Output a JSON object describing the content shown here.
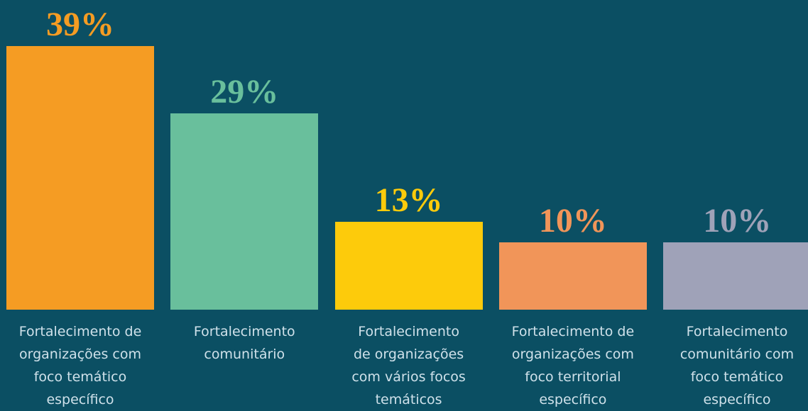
{
  "chart_data": {
    "type": "bar",
    "categories": [
      "Fortalecimento de\norganizações com\nfoco temático\nespecífico",
      "Fortalecimento\ncomunitário",
      "Fortalecimento\nde organizações\ncom vários focos\ntemáticos",
      "Fortalecimento de\norganizações com\nfoco territorial\nespecífico",
      "Fortalecimento\ncomunitário com\nfoco temático\nespecífico"
    ],
    "values": [
      39,
      29,
      13,
      10,
      10
    ],
    "value_labels": [
      "39%",
      "29%",
      "13%",
      "10%",
      "10%"
    ],
    "colors": [
      "#f59c23",
      "#69bf9c",
      "#fdcb0b",
      "#f19559",
      "#9fa2b8"
    ]
  }
}
